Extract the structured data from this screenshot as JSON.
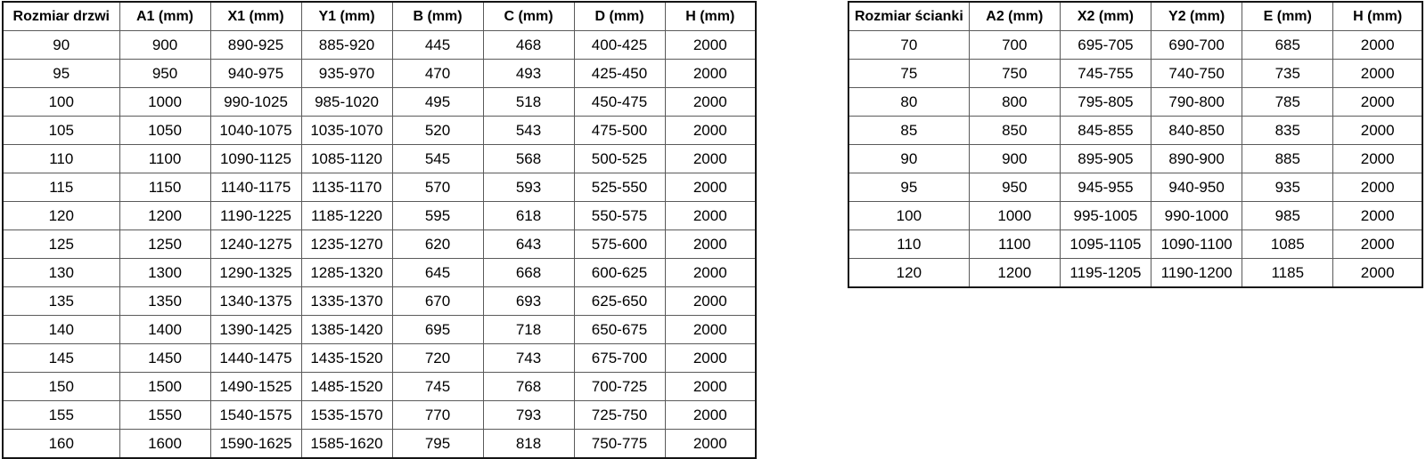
{
  "tables": {
    "doors": {
      "name": "door-sizes",
      "headers": [
        "Rozmiar drzwi",
        "A1 (mm)",
        "X1 (mm)",
        "Y1 (mm)",
        "B (mm)",
        "C (mm)",
        "D (mm)",
        "H (mm)"
      ],
      "rows": [
        [
          "90",
          "900",
          "890-925",
          "885-920",
          "445",
          "468",
          "400-425",
          "2000"
        ],
        [
          "95",
          "950",
          "940-975",
          "935-970",
          "470",
          "493",
          "425-450",
          "2000"
        ],
        [
          "100",
          "1000",
          "990-1025",
          "985-1020",
          "495",
          "518",
          "450-475",
          "2000"
        ],
        [
          "105",
          "1050",
          "1040-1075",
          "1035-1070",
          "520",
          "543",
          "475-500",
          "2000"
        ],
        [
          "110",
          "1100",
          "1090-1125",
          "1085-1120",
          "545",
          "568",
          "500-525",
          "2000"
        ],
        [
          "115",
          "1150",
          "1140-1175",
          "1135-1170",
          "570",
          "593",
          "525-550",
          "2000"
        ],
        [
          "120",
          "1200",
          "1190-1225",
          "1185-1220",
          "595",
          "618",
          "550-575",
          "2000"
        ],
        [
          "125",
          "1250",
          "1240-1275",
          "1235-1270",
          "620",
          "643",
          "575-600",
          "2000"
        ],
        [
          "130",
          "1300",
          "1290-1325",
          "1285-1320",
          "645",
          "668",
          "600-625",
          "2000"
        ],
        [
          "135",
          "1350",
          "1340-1375",
          "1335-1370",
          "670",
          "693",
          "625-650",
          "2000"
        ],
        [
          "140",
          "1400",
          "1390-1425",
          "1385-1420",
          "695",
          "718",
          "650-675",
          "2000"
        ],
        [
          "145",
          "1450",
          "1440-1475",
          "1435-1520",
          "720",
          "743",
          "675-700",
          "2000"
        ],
        [
          "150",
          "1500",
          "1490-1525",
          "1485-1520",
          "745",
          "768",
          "700-725",
          "2000"
        ],
        [
          "155",
          "1550",
          "1540-1575",
          "1535-1570",
          "770",
          "793",
          "725-750",
          "2000"
        ],
        [
          "160",
          "1600",
          "1590-1625",
          "1585-1620",
          "795",
          "818",
          "750-775",
          "2000"
        ]
      ]
    },
    "walls": {
      "name": "wall-sizes",
      "headers": [
        "Rozmiar ścianki",
        "A2 (mm)",
        "X2 (mm)",
        "Y2 (mm)",
        "E (mm)",
        "H (mm)"
      ],
      "rows": [
        [
          "70",
          "700",
          "695-705",
          "690-700",
          "685",
          "2000"
        ],
        [
          "75",
          "750",
          "745-755",
          "740-750",
          "735",
          "2000"
        ],
        [
          "80",
          "800",
          "795-805",
          "790-800",
          "785",
          "2000"
        ],
        [
          "85",
          "850",
          "845-855",
          "840-850",
          "835",
          "2000"
        ],
        [
          "90",
          "900",
          "895-905",
          "890-900",
          "885",
          "2000"
        ],
        [
          "95",
          "950",
          "945-955",
          "940-950",
          "935",
          "2000"
        ],
        [
          "100",
          "1000",
          "995-1005",
          "990-1000",
          "985",
          "2000"
        ],
        [
          "110",
          "1100",
          "1095-1105",
          "1090-1100",
          "1085",
          "2000"
        ],
        [
          "120",
          "1200",
          "1195-1205",
          "1190-1200",
          "1185",
          "2000"
        ]
      ]
    }
  }
}
